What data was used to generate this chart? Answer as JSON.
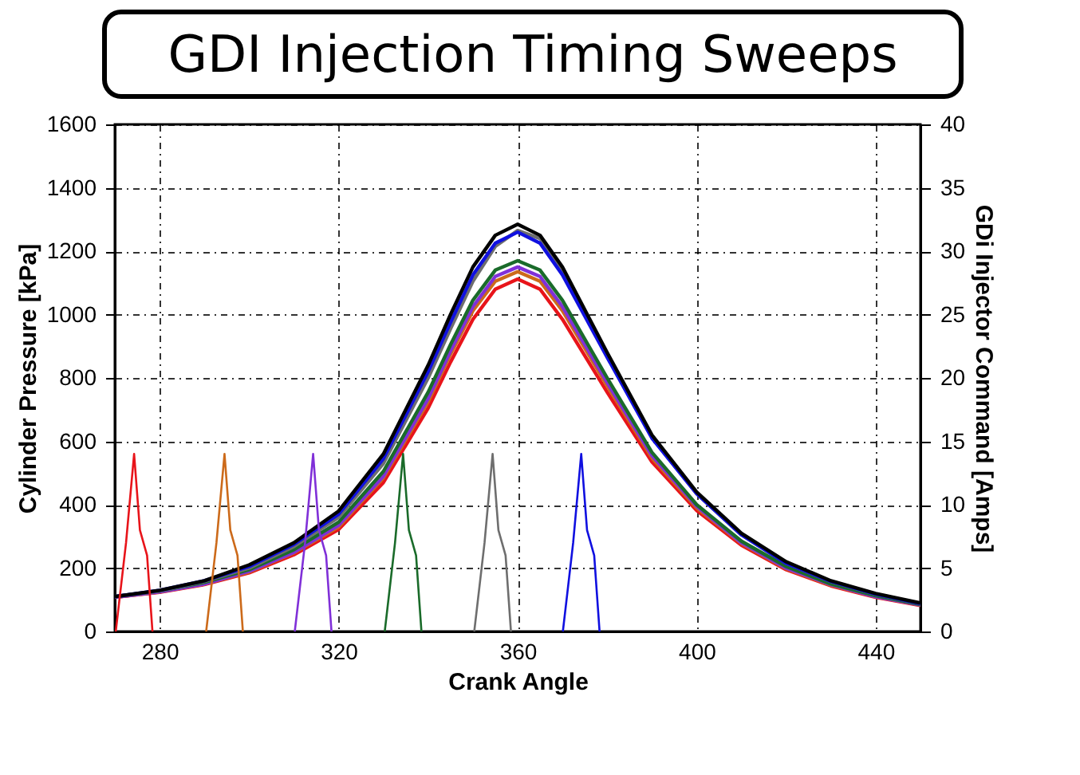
{
  "chart_data": {
    "type": "line",
    "title": "GDI Injection Timing Sweeps",
    "xlabel": "Crank Angle",
    "ylabel": "Cylinder Pressure [kPa]",
    "y2label": "GDi Injector Command [Amps]",
    "xlim": [
      270,
      450
    ],
    "xticks": [
      280,
      320,
      360,
      400,
      440
    ],
    "ylim": [
      0,
      1600
    ],
    "yticks": [
      0,
      200,
      400,
      600,
      800,
      1000,
      1200,
      1400,
      1600
    ],
    "y2lim": [
      0,
      40
    ],
    "y2ticks": [
      0,
      5,
      10,
      15,
      20,
      25,
      30,
      35,
      40
    ],
    "grid": true,
    "x": [
      270,
      280,
      290,
      300,
      310,
      320,
      330,
      340,
      345,
      350,
      355,
      360,
      365,
      370,
      380,
      390,
      400,
      410,
      420,
      430,
      440,
      450
    ],
    "series": [
      {
        "type": "line",
        "color": "#e8141a",
        "values": [
          108,
          124,
          148,
          185,
          242,
          322,
          470,
          705,
          850,
          985,
          1080,
          1112,
          1080,
          985,
          755,
          535,
          382,
          272,
          195,
          144,
          108,
          82
        ]
      },
      {
        "type": "line",
        "color": "#cc6a1a",
        "values": [
          108,
          125,
          150,
          188,
          248,
          330,
          485,
          725,
          875,
          1012,
          1105,
          1135,
          1105,
          1012,
          775,
          548,
          390,
          278,
          198,
          146,
          110,
          84
        ]
      },
      {
        "type": "line",
        "color": "#8030d8",
        "values": [
          108,
          125,
          150,
          190,
          250,
          335,
          490,
          735,
          885,
          1025,
          1120,
          1150,
          1120,
          1025,
          785,
          555,
          395,
          280,
          200,
          148,
          110,
          84
        ]
      },
      {
        "type": "line",
        "color": "#1a6b2a",
        "values": [
          110,
          128,
          155,
          195,
          258,
          345,
          505,
          755,
          905,
          1045,
          1140,
          1170,
          1140,
          1045,
          800,
          565,
          400,
          285,
          205,
          150,
          113,
          85
        ]
      },
      {
        "type": "line",
        "color": "#6e6e6e",
        "values": [
          110,
          128,
          158,
          200,
          268,
          360,
          530,
          800,
          955,
          1105,
          1215,
          1265,
          1240,
          1135,
          870,
          612,
          435,
          305,
          215,
          158,
          118,
          88
        ]
      },
      {
        "type": "line",
        "color": "#1010e0",
        "values": [
          110,
          130,
          160,
          205,
          275,
          370,
          545,
          820,
          975,
          1125,
          1225,
          1260,
          1225,
          1125,
          865,
          610,
          435,
          305,
          215,
          158,
          118,
          88
        ]
      },
      {
        "type": "line",
        "color": "#000000",
        "values": [
          110,
          130,
          160,
          210,
          280,
          380,
          560,
          840,
          1000,
          1150,
          1250,
          1285,
          1250,
          1150,
          880,
          620,
          440,
          310,
          220,
          160,
          120,
          90
        ]
      },
      {
        "type": "line",
        "axis": "y2",
        "color": "#e8141a",
        "x": [
          270.2,
          272.5,
          274.3,
          275.6,
          277.2,
          278.4
        ],
        "values": [
          0,
          7,
          14,
          8,
          6,
          0
        ]
      },
      {
        "type": "line",
        "axis": "y2",
        "color": "#cc6a1a",
        "x": [
          290.4,
          292.7,
          294.5,
          295.8,
          297.4,
          298.6
        ],
        "values": [
          0,
          7,
          14,
          8,
          6,
          0
        ]
      },
      {
        "type": "line",
        "axis": "y2",
        "color": "#8030d8",
        "x": [
          310.2,
          312.5,
          314.3,
          315.6,
          317.2,
          318.4
        ],
        "values": [
          0,
          7,
          14,
          8,
          6,
          0
        ]
      },
      {
        "type": "line",
        "axis": "y2",
        "color": "#1a6b2a",
        "x": [
          330.3,
          332.6,
          334.4,
          335.7,
          337.3,
          338.5
        ],
        "values": [
          0,
          7,
          14,
          8,
          6,
          0
        ]
      },
      {
        "type": "line",
        "axis": "y2",
        "color": "#6e6e6e",
        "x": [
          350.3,
          352.6,
          354.4,
          355.7,
          357.3,
          358.5
        ],
        "values": [
          0,
          7,
          14,
          8,
          6,
          0
        ]
      },
      {
        "type": "line",
        "axis": "y2",
        "color": "#1010e0",
        "x": [
          370.1,
          372.4,
          374.2,
          375.5,
          377.1,
          378.3
        ],
        "values": [
          0,
          7,
          14,
          8,
          6,
          0
        ]
      }
    ]
  }
}
